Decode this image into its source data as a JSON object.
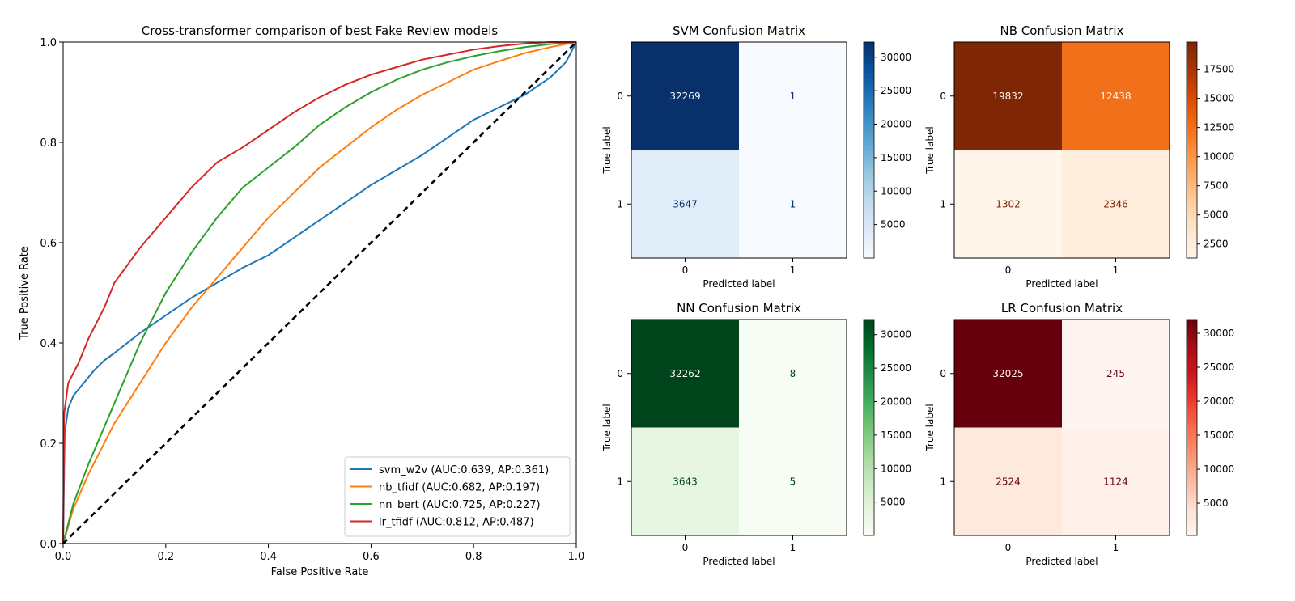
{
  "chart_data": [
    {
      "type": "line",
      "title": "Cross-transformer comparison of best Fake Review models",
      "xlabel": "False Positive Rate",
      "ylabel": "True Positive Rate",
      "xlim": [
        0,
        1
      ],
      "ylim": [
        0,
        1
      ],
      "xticks": [
        "0.0",
        "0.2",
        "0.4",
        "0.6",
        "0.8",
        "1.0"
      ],
      "yticks": [
        "0.0",
        "0.2",
        "0.4",
        "0.6",
        "0.8",
        "1.0"
      ],
      "grid": false,
      "legend_position": "lower-right",
      "series": [
        {
          "name": "svm_w2v (AUC:0.639, AP:0.361)",
          "color": "#1f77b4",
          "points": [
            [
              0,
              0
            ],
            [
              0.003,
              0.22
            ],
            [
              0.01,
              0.27
            ],
            [
              0.02,
              0.295
            ],
            [
              0.04,
              0.32
            ],
            [
              0.06,
              0.345
            ],
            [
              0.08,
              0.365
            ],
            [
              0.1,
              0.38
            ],
            [
              0.15,
              0.42
            ],
            [
              0.2,
              0.455
            ],
            [
              0.25,
              0.49
            ],
            [
              0.3,
              0.52
            ],
            [
              0.35,
              0.55
            ],
            [
              0.4,
              0.575
            ],
            [
              0.45,
              0.61
            ],
            [
              0.5,
              0.645
            ],
            [
              0.55,
              0.68
            ],
            [
              0.6,
              0.715
            ],
            [
              0.65,
              0.745
            ],
            [
              0.7,
              0.775
            ],
            [
              0.75,
              0.81
            ],
            [
              0.8,
              0.845
            ],
            [
              0.85,
              0.87
            ],
            [
              0.9,
              0.895
            ],
            [
              0.95,
              0.93
            ],
            [
              0.98,
              0.96
            ],
            [
              1,
              1
            ]
          ]
        },
        {
          "name": "nb_tfidf (AUC:0.682, AP:0.197)",
          "color": "#ff7f0e",
          "points": [
            [
              0,
              0
            ],
            [
              0.02,
              0.07
            ],
            [
              0.05,
              0.14
            ],
            [
              0.1,
              0.24
            ],
            [
              0.15,
              0.32
            ],
            [
              0.2,
              0.4
            ],
            [
              0.25,
              0.47
            ],
            [
              0.3,
              0.53
            ],
            [
              0.35,
              0.59
            ],
            [
              0.4,
              0.65
            ],
            [
              0.45,
              0.7
            ],
            [
              0.5,
              0.75
            ],
            [
              0.55,
              0.79
            ],
            [
              0.6,
              0.83
            ],
            [
              0.65,
              0.865
            ],
            [
              0.7,
              0.895
            ],
            [
              0.75,
              0.92
            ],
            [
              0.8,
              0.945
            ],
            [
              0.85,
              0.962
            ],
            [
              0.9,
              0.978
            ],
            [
              0.95,
              0.99
            ],
            [
              1,
              1
            ]
          ]
        },
        {
          "name": "nn_bert (AUC:0.725, AP:0.227)",
          "color": "#2ca02c",
          "points": [
            [
              0,
              0
            ],
            [
              0.02,
              0.08
            ],
            [
              0.05,
              0.16
            ],
            [
              0.1,
              0.28
            ],
            [
              0.15,
              0.4
            ],
            [
              0.2,
              0.5
            ],
            [
              0.25,
              0.58
            ],
            [
              0.3,
              0.65
            ],
            [
              0.35,
              0.71
            ],
            [
              0.4,
              0.75
            ],
            [
              0.45,
              0.79
            ],
            [
              0.5,
              0.835
            ],
            [
              0.55,
              0.87
            ],
            [
              0.6,
              0.9
            ],
            [
              0.65,
              0.925
            ],
            [
              0.7,
              0.945
            ],
            [
              0.75,
              0.96
            ],
            [
              0.8,
              0.972
            ],
            [
              0.85,
              0.982
            ],
            [
              0.9,
              0.99
            ],
            [
              0.95,
              0.996
            ],
            [
              1,
              1
            ]
          ]
        },
        {
          "name": "lr_tfidf (AUC:0.812, AP:0.487)",
          "color": "#d62728",
          "points": [
            [
              0,
              0
            ],
            [
              0.002,
              0.26
            ],
            [
              0.01,
              0.32
            ],
            [
              0.03,
              0.36
            ],
            [
              0.05,
              0.41
            ],
            [
              0.08,
              0.47
            ],
            [
              0.1,
              0.52
            ],
            [
              0.15,
              0.59
            ],
            [
              0.2,
              0.65
            ],
            [
              0.25,
              0.71
            ],
            [
              0.3,
              0.76
            ],
            [
              0.35,
              0.79
            ],
            [
              0.4,
              0.825
            ],
            [
              0.45,
              0.86
            ],
            [
              0.5,
              0.89
            ],
            [
              0.55,
              0.915
            ],
            [
              0.6,
              0.935
            ],
            [
              0.65,
              0.95
            ],
            [
              0.7,
              0.965
            ],
            [
              0.75,
              0.975
            ],
            [
              0.8,
              0.985
            ],
            [
              0.85,
              0.992
            ],
            [
              0.9,
              0.997
            ],
            [
              0.95,
              1
            ],
            [
              1,
              1
            ]
          ]
        },
        {
          "name": "",
          "color": "#000000",
          "style": "dashed",
          "points": [
            [
              0,
              0
            ],
            [
              1,
              1
            ]
          ]
        }
      ]
    },
    {
      "type": "heatmap",
      "title": "SVM Confusion Matrix",
      "xlabel": "Predicted label",
      "ylabel": "True label",
      "categories": [
        "0",
        "1"
      ],
      "values": [
        [
          32269,
          1
        ],
        [
          3647,
          1
        ]
      ],
      "colormap": "Blues",
      "colorbar_ticks": [
        5000,
        10000,
        15000,
        20000,
        25000,
        30000
      ],
      "vmin": 1,
      "vmax": 32269
    },
    {
      "type": "heatmap",
      "title": "NB Confusion Matrix",
      "xlabel": "Predicted label",
      "ylabel": "True label",
      "categories": [
        "0",
        "1"
      ],
      "values": [
        [
          19832,
          12438
        ],
        [
          1302,
          2346
        ]
      ],
      "colormap": "Oranges",
      "colorbar_ticks": [
        2500,
        5000,
        7500,
        10000,
        12500,
        15000,
        17500
      ],
      "vmin": 1302,
      "vmax": 19832
    },
    {
      "type": "heatmap",
      "title": "NN Confusion Matrix",
      "xlabel": "Predicted label",
      "ylabel": "True label",
      "categories": [
        "0",
        "1"
      ],
      "values": [
        [
          32262,
          8
        ],
        [
          3643,
          5
        ]
      ],
      "colormap": "Greens",
      "colorbar_ticks": [
        5000,
        10000,
        15000,
        20000,
        25000,
        30000
      ],
      "vmin": 5,
      "vmax": 32262
    },
    {
      "type": "heatmap",
      "title": "LR Confusion Matrix",
      "xlabel": "Predicted label",
      "ylabel": "True label",
      "categories": [
        "0",
        "1"
      ],
      "values": [
        [
          32025,
          245
        ],
        [
          2524,
          1124
        ]
      ],
      "colormap": "Reds",
      "colorbar_ticks": [
        5000,
        10000,
        15000,
        20000,
        25000,
        30000
      ],
      "vmin": 245,
      "vmax": 32025
    }
  ]
}
